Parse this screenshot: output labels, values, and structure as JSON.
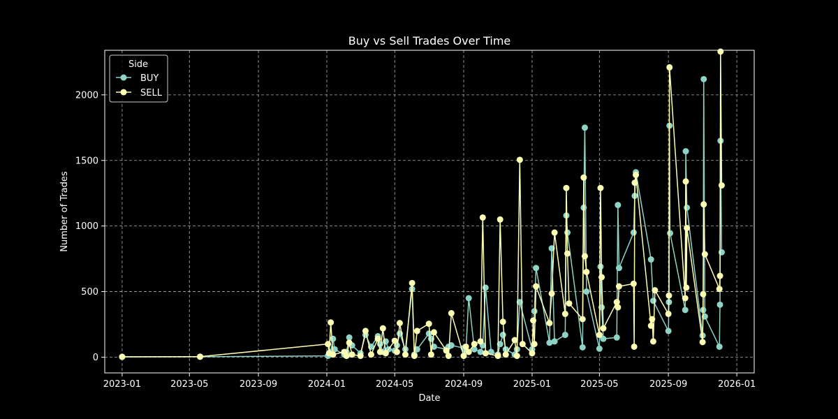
{
  "chart_data": {
    "type": "line",
    "title": "Buy vs Sell Trades Over Time",
    "xlabel": "Date",
    "ylabel": "Number of Trades",
    "x_type": "date",
    "xlim": [
      "2022-12-01",
      "2026-02-01"
    ],
    "ylim": [
      -120,
      2340
    ],
    "x_ticks": [
      "2023-01",
      "2023-05",
      "2023-09",
      "2024-01",
      "2024-05",
      "2024-09",
      "2025-01",
      "2025-05",
      "2025-09",
      "2026-01"
    ],
    "y_ticks": [
      0,
      500,
      1000,
      1500,
      2000
    ],
    "grid": true,
    "legend": {
      "title": "Side",
      "placement": "top-left"
    },
    "series": [
      {
        "name": "BUY",
        "color": "#8dd3c7",
        "points": [
          [
            "2023-01-01",
            2
          ],
          [
            "2023-05-20",
            3
          ],
          [
            "2024-01-03",
            10
          ],
          [
            "2024-01-05",
            25
          ],
          [
            "2024-01-08",
            40
          ],
          [
            "2024-01-12",
            140
          ],
          [
            "2024-01-15",
            60
          ],
          [
            "2024-02-01",
            20
          ],
          [
            "2024-02-05",
            40
          ],
          [
            "2024-02-10",
            150
          ],
          [
            "2024-02-15",
            90
          ],
          [
            "2024-03-01",
            30
          ],
          [
            "2024-03-10",
            170
          ],
          [
            "2024-03-20",
            80
          ],
          [
            "2024-04-01",
            160
          ],
          [
            "2024-04-05",
            100
          ],
          [
            "2024-04-10",
            40
          ],
          [
            "2024-04-15",
            120
          ],
          [
            "2024-04-20",
            60
          ],
          [
            "2024-05-01",
            50
          ],
          [
            "2024-05-05",
            90
          ],
          [
            "2024-05-10",
            180
          ],
          [
            "2024-05-20",
            60
          ],
          [
            "2024-06-01",
            520
          ],
          [
            "2024-06-05",
            20
          ],
          [
            "2024-06-10",
            60
          ],
          [
            "2024-07-01",
            180
          ],
          [
            "2024-07-05",
            140
          ],
          [
            "2024-07-10",
            80
          ],
          [
            "2024-08-01",
            60
          ],
          [
            "2024-08-05",
            80
          ],
          [
            "2024-08-10",
            90
          ],
          [
            "2024-09-01",
            70
          ],
          [
            "2024-09-05",
            50
          ],
          [
            "2024-09-10",
            450
          ],
          [
            "2024-09-20",
            60
          ],
          [
            "2024-10-01",
            40
          ],
          [
            "2024-10-05",
            90
          ],
          [
            "2024-10-10",
            530
          ],
          [
            "2024-10-20",
            40
          ],
          [
            "2024-11-01",
            20
          ],
          [
            "2024-11-05",
            100
          ],
          [
            "2024-11-10",
            170
          ],
          [
            "2024-11-15",
            60
          ],
          [
            "2024-12-01",
            20
          ],
          [
            "2024-12-05",
            60
          ],
          [
            "2024-12-10",
            420
          ],
          [
            "2025-01-01",
            60
          ],
          [
            "2025-01-05",
            350
          ],
          [
            "2025-01-08",
            680
          ],
          [
            "2025-02-01",
            110
          ],
          [
            "2025-02-05",
            830
          ],
          [
            "2025-02-10",
            120
          ],
          [
            "2025-03-01",
            170
          ],
          [
            "2025-03-03",
            1080
          ],
          [
            "2025-03-05",
            950
          ],
          [
            "2025-04-01",
            75
          ],
          [
            "2025-04-03",
            1140
          ],
          [
            "2025-04-05",
            1750
          ],
          [
            "2025-04-08",
            500
          ],
          [
            "2025-05-01",
            65
          ],
          [
            "2025-05-03",
            690
          ],
          [
            "2025-05-05",
            380
          ],
          [
            "2025-05-08",
            140
          ],
          [
            "2025-06-01",
            150
          ],
          [
            "2025-06-03",
            1160
          ],
          [
            "2025-06-05",
            680
          ],
          [
            "2025-07-01",
            950
          ],
          [
            "2025-07-03",
            1230
          ],
          [
            "2025-07-05",
            1410
          ],
          [
            "2025-08-01",
            745
          ],
          [
            "2025-08-05",
            430
          ],
          [
            "2025-09-01",
            200
          ],
          [
            "2025-09-02",
            420
          ],
          [
            "2025-09-03",
            1765
          ],
          [
            "2025-09-04",
            945
          ],
          [
            "2025-10-01",
            360
          ],
          [
            "2025-10-02",
            1570
          ],
          [
            "2025-10-04",
            1140
          ],
          [
            "2025-11-01",
            165
          ],
          [
            "2025-11-02",
            360
          ],
          [
            "2025-11-03",
            2120
          ],
          [
            "2025-11-05",
            310
          ],
          [
            "2025-12-01",
            80
          ],
          [
            "2025-12-02",
            400
          ],
          [
            "2025-12-03",
            1650
          ],
          [
            "2025-12-05",
            800
          ]
        ]
      },
      {
        "name": "SELL",
        "color": "#ffffb3",
        "points": [
          [
            "2023-01-01",
            3
          ],
          [
            "2023-05-20",
            4
          ],
          [
            "2024-01-03",
            100
          ],
          [
            "2024-01-05",
            30
          ],
          [
            "2024-01-08",
            265
          ],
          [
            "2024-01-12",
            20
          ],
          [
            "2024-02-01",
            40
          ],
          [
            "2024-02-05",
            10
          ],
          [
            "2024-02-10",
            110
          ],
          [
            "2024-02-15",
            20
          ],
          [
            "2024-03-01",
            10
          ],
          [
            "2024-03-10",
            200
          ],
          [
            "2024-03-20",
            20
          ],
          [
            "2024-04-01",
            140
          ],
          [
            "2024-04-05",
            40
          ],
          [
            "2024-04-10",
            220
          ],
          [
            "2024-04-15",
            30
          ],
          [
            "2024-05-01",
            125
          ],
          [
            "2024-05-05",
            40
          ],
          [
            "2024-05-10",
            260
          ],
          [
            "2024-05-20",
            20
          ],
          [
            "2024-06-01",
            565
          ],
          [
            "2024-06-05",
            10
          ],
          [
            "2024-06-10",
            200
          ],
          [
            "2024-07-01",
            255
          ],
          [
            "2024-07-05",
            20
          ],
          [
            "2024-07-10",
            190
          ],
          [
            "2024-08-01",
            50
          ],
          [
            "2024-08-05",
            10
          ],
          [
            "2024-08-10",
            335
          ],
          [
            "2024-09-01",
            10
          ],
          [
            "2024-09-05",
            80
          ],
          [
            "2024-09-10",
            40
          ],
          [
            "2024-09-20",
            100
          ],
          [
            "2024-10-01",
            120
          ],
          [
            "2024-10-05",
            1065
          ],
          [
            "2024-10-10",
            30
          ],
          [
            "2024-11-01",
            10
          ],
          [
            "2024-11-05",
            1050
          ],
          [
            "2024-11-10",
            270
          ],
          [
            "2024-11-15",
            20
          ],
          [
            "2024-12-01",
            130
          ],
          [
            "2024-12-05",
            10
          ],
          [
            "2024-12-10",
            1505
          ],
          [
            "2024-12-15",
            100
          ],
          [
            "2025-01-01",
            30
          ],
          [
            "2025-01-03",
            280
          ],
          [
            "2025-01-05",
            100
          ],
          [
            "2025-01-08",
            540
          ],
          [
            "2025-02-01",
            260
          ],
          [
            "2025-02-05",
            485
          ],
          [
            "2025-02-10",
            950
          ],
          [
            "2025-03-01",
            330
          ],
          [
            "2025-03-03",
            1290
          ],
          [
            "2025-03-05",
            790
          ],
          [
            "2025-03-08",
            410
          ],
          [
            "2025-04-01",
            290
          ],
          [
            "2025-04-03",
            1370
          ],
          [
            "2025-04-05",
            770
          ],
          [
            "2025-04-08",
            650
          ],
          [
            "2025-05-01",
            170
          ],
          [
            "2025-05-03",
            1290
          ],
          [
            "2025-05-05",
            610
          ],
          [
            "2025-05-08",
            220
          ],
          [
            "2025-06-01",
            420
          ],
          [
            "2025-06-03",
            380
          ],
          [
            "2025-06-05",
            540
          ],
          [
            "2025-07-01",
            560
          ],
          [
            "2025-07-02",
            80
          ],
          [
            "2025-07-03",
            1330
          ],
          [
            "2025-07-05",
            1390
          ],
          [
            "2025-08-01",
            240
          ],
          [
            "2025-08-03",
            290
          ],
          [
            "2025-08-05",
            120
          ],
          [
            "2025-08-08",
            510
          ],
          [
            "2025-09-01",
            330
          ],
          [
            "2025-09-02",
            470
          ],
          [
            "2025-09-03",
            2210
          ],
          [
            "2025-10-01",
            450
          ],
          [
            "2025-10-02",
            1340
          ],
          [
            "2025-10-03",
            530
          ],
          [
            "2025-10-04",
            985
          ],
          [
            "2025-11-01",
            115
          ],
          [
            "2025-11-02",
            480
          ],
          [
            "2025-11-03",
            1165
          ],
          [
            "2025-11-05",
            785
          ],
          [
            "2025-12-01",
            520
          ],
          [
            "2025-12-02",
            620
          ],
          [
            "2025-12-03",
            2330
          ],
          [
            "2025-12-05",
            1310
          ]
        ]
      }
    ]
  },
  "colors": {
    "background": "#000000",
    "frame": "#ffffff",
    "grid": "#b0b0b0",
    "legend_frame": "#cccccc"
  }
}
